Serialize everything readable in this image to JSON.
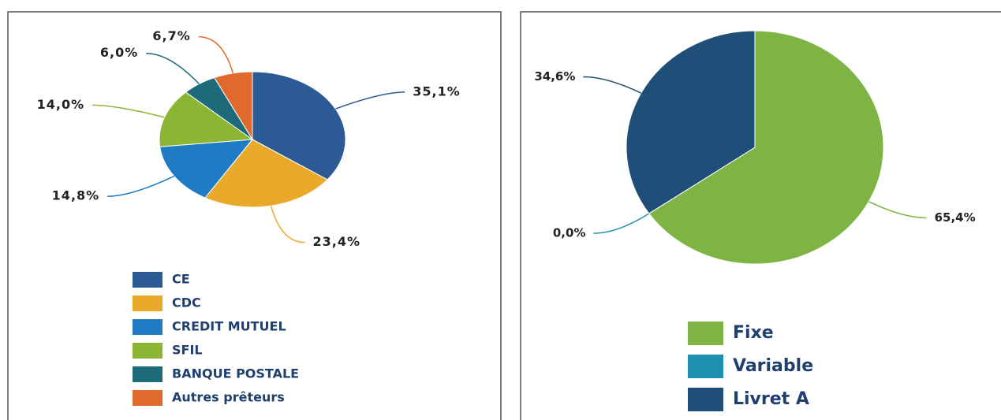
{
  "chart_data": [
    {
      "type": "pie",
      "categories": [
        "CE",
        "CDC",
        "CREDIT MUTUEL",
        "SFIL",
        "BANQUE POSTALE",
        "Autres prêteurs"
      ],
      "values": [
        35.1,
        23.4,
        14.8,
        14.0,
        6.0,
        6.7
      ],
      "value_labels": [
        "35,1%",
        "23,4%",
        "14,8%",
        "14,0%",
        "6,0%",
        "6,7%"
      ],
      "colors": [
        "#2b5a94",
        "#e9a92a",
        "#1f7cc4",
        "#8db534",
        "#1d6a7a",
        "#e06a2c"
      ]
    },
    {
      "type": "pie",
      "categories": [
        "Fixe",
        "Variable",
        "Livret A"
      ],
      "values": [
        65.4,
        0.0,
        34.6
      ],
      "value_labels": [
        "65,4%",
        "0,0%",
        "34,6%"
      ],
      "colors": [
        "#7db443",
        "#1e8fb0",
        "#1f4e79"
      ]
    }
  ]
}
